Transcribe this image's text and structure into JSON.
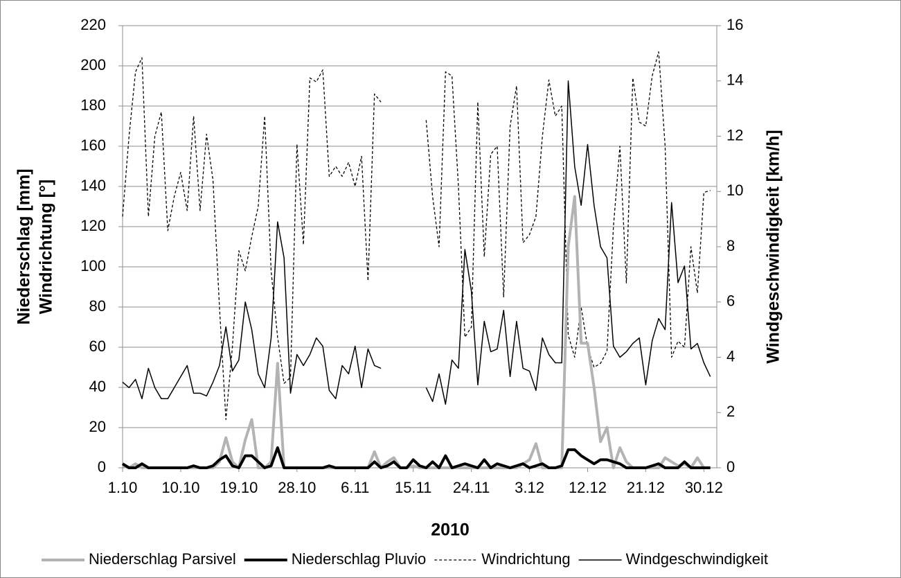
{
  "chart_data": {
    "type": "line",
    "x_label": "2010",
    "y_label": [
      "Niederschlag [mm]",
      "Windrichtung [°]"
    ],
    "y2_label": "Windgeschwindigkeit [km/h]",
    "categories": [
      "1.10",
      null,
      null,
      null,
      null,
      null,
      null,
      null,
      null,
      "10.10",
      null,
      null,
      null,
      null,
      null,
      null,
      null,
      null,
      "19.10",
      null,
      null,
      null,
      null,
      null,
      null,
      null,
      null,
      "28.10",
      null,
      null,
      null,
      null,
      null,
      null,
      null,
      null,
      "6.11",
      null,
      null,
      null,
      null,
      null,
      null,
      null,
      null,
      "15.11",
      null,
      null,
      null,
      null,
      null,
      null,
      null,
      null,
      "24.11",
      null,
      null,
      null,
      null,
      null,
      null,
      null,
      null,
      "3.12",
      null,
      null,
      null,
      null,
      null,
      null,
      null,
      null,
      "12.12",
      null,
      null,
      null,
      null,
      null,
      null,
      null,
      null,
      "21.12",
      null,
      null,
      null,
      null,
      null,
      null,
      null,
      null,
      "30.12",
      null
    ],
    "ylim": [
      0,
      220
    ],
    "yticks": [
      0,
      20,
      40,
      60,
      80,
      100,
      120,
      140,
      160,
      180,
      200,
      220
    ],
    "y2lim": [
      0,
      16
    ],
    "y2ticks": [
      0,
      2,
      4,
      6,
      8,
      10,
      12,
      14,
      16
    ],
    "grid": true,
    "legend": "bottom",
    "series": [
      {
        "name": "Niederschlag Parsivel",
        "color": "#b3b3b3",
        "linewidth": 4,
        "linestyle": "solid",
        "values": [
          1,
          0,
          2,
          0,
          0,
          0,
          0,
          0,
          0,
          0,
          0,
          0,
          0,
          0,
          0,
          3,
          15,
          3,
          0,
          14,
          24,
          0,
          0,
          3,
          52,
          0,
          0,
          0,
          0,
          0,
          0,
          0,
          0,
          0,
          0,
          0,
          0,
          0,
          0,
          8,
          0,
          3,
          5,
          0,
          0,
          1,
          0,
          0,
          0,
          0,
          0,
          0,
          0,
          0,
          0,
          0,
          0,
          0,
          0,
          0,
          0,
          0,
          2,
          4,
          12,
          0,
          0,
          0,
          0,
          110,
          135,
          62,
          62,
          40,
          13,
          20,
          0,
          10,
          3,
          0,
          0,
          0,
          0,
          0,
          5,
          3,
          1,
          2,
          0,
          5,
          0,
          0
        ]
      },
      {
        "name": "Niederschlag Pluvio",
        "color": "#000000",
        "linewidth": 4,
        "linestyle": "solid",
        "values": [
          2,
          0,
          0,
          2,
          0,
          0,
          0,
          0,
          0,
          0,
          0,
          1,
          0,
          0,
          1,
          4,
          6,
          1,
          0,
          6,
          6,
          3,
          0,
          1,
          10,
          0,
          0,
          0,
          0,
          0,
          0,
          0,
          1,
          0,
          0,
          0,
          0,
          0,
          0,
          3,
          0,
          1,
          3,
          0,
          0,
          4,
          1,
          0,
          3,
          0,
          6,
          0,
          1,
          2,
          1,
          0,
          4,
          0,
          2,
          1,
          0,
          1,
          2,
          0,
          1,
          2,
          0,
          0,
          1,
          9,
          9,
          6,
          4,
          2,
          4,
          4,
          3,
          2,
          0,
          0,
          0,
          0,
          1,
          2,
          0,
          0,
          0,
          3,
          0,
          0,
          0,
          0
        ]
      },
      {
        "name": "Windrichtung",
        "color": "#000000",
        "linewidth": 1.3,
        "linestyle": "dashed",
        "values": [
          125,
          165,
          197,
          204,
          125,
          165,
          177,
          118,
          135,
          147,
          128,
          175,
          128,
          166,
          143,
          80,
          24,
          60,
          108,
          98,
          115,
          130,
          175,
          98,
          65,
          42,
          45,
          161,
          111,
          194,
          192,
          198,
          145,
          150,
          145,
          152,
          140,
          155,
          93,
          186,
          182,
          null,
          null,
          null,
          null,
          null,
          null,
          173,
          135,
          110,
          197,
          195,
          140,
          65,
          70,
          182,
          105,
          156,
          160,
          85,
          170,
          190,
          112,
          116,
          125,
          165,
          193,
          175,
          180,
          66,
          55,
          80,
          60,
          50,
          52,
          58,
          120,
          160,
          92,
          194,
          172,
          170,
          195,
          207,
          160,
          55,
          63,
          60,
          110,
          87,
          137,
          138
        ]
      },
      {
        "name": "Windgeschwindigkeit",
        "color": "#000000",
        "linewidth": 1.5,
        "linestyle": "solid",
        "axis": "y2",
        "values": [
          3.1,
          2.9,
          3.2,
          2.5,
          3.6,
          2.9,
          2.5,
          2.5,
          2.9,
          3.3,
          3.7,
          2.7,
          2.7,
          2.6,
          3.1,
          3.7,
          5.1,
          3.5,
          3.9,
          6.0,
          5.0,
          3.4,
          2.9,
          4.7,
          8.9,
          7.6,
          2.7,
          4.1,
          3.7,
          4.1,
          4.7,
          4.4,
          2.8,
          2.5,
          3.7,
          3.4,
          4.4,
          2.9,
          4.3,
          3.7,
          3.6,
          null,
          null,
          null,
          null,
          null,
          null,
          2.9,
          2.4,
          3.4,
          2.3,
          3.9,
          3.6,
          7.9,
          6.4,
          3.0,
          5.3,
          4.2,
          4.3,
          5.7,
          3.3,
          5.3,
          3.6,
          3.5,
          2.8,
          4.7,
          4.1,
          3.8,
          3.8,
          14.0,
          10.9,
          9.5,
          11.7,
          9.5,
          8.0,
          7.6,
          4.4,
          4.0,
          4.2,
          4.5,
          4.7,
          3.0,
          4.6,
          5.4,
          5.0,
          9.6,
          6.7,
          7.3,
          4.3,
          4.5,
          3.8,
          3.3
        ]
      }
    ]
  }
}
